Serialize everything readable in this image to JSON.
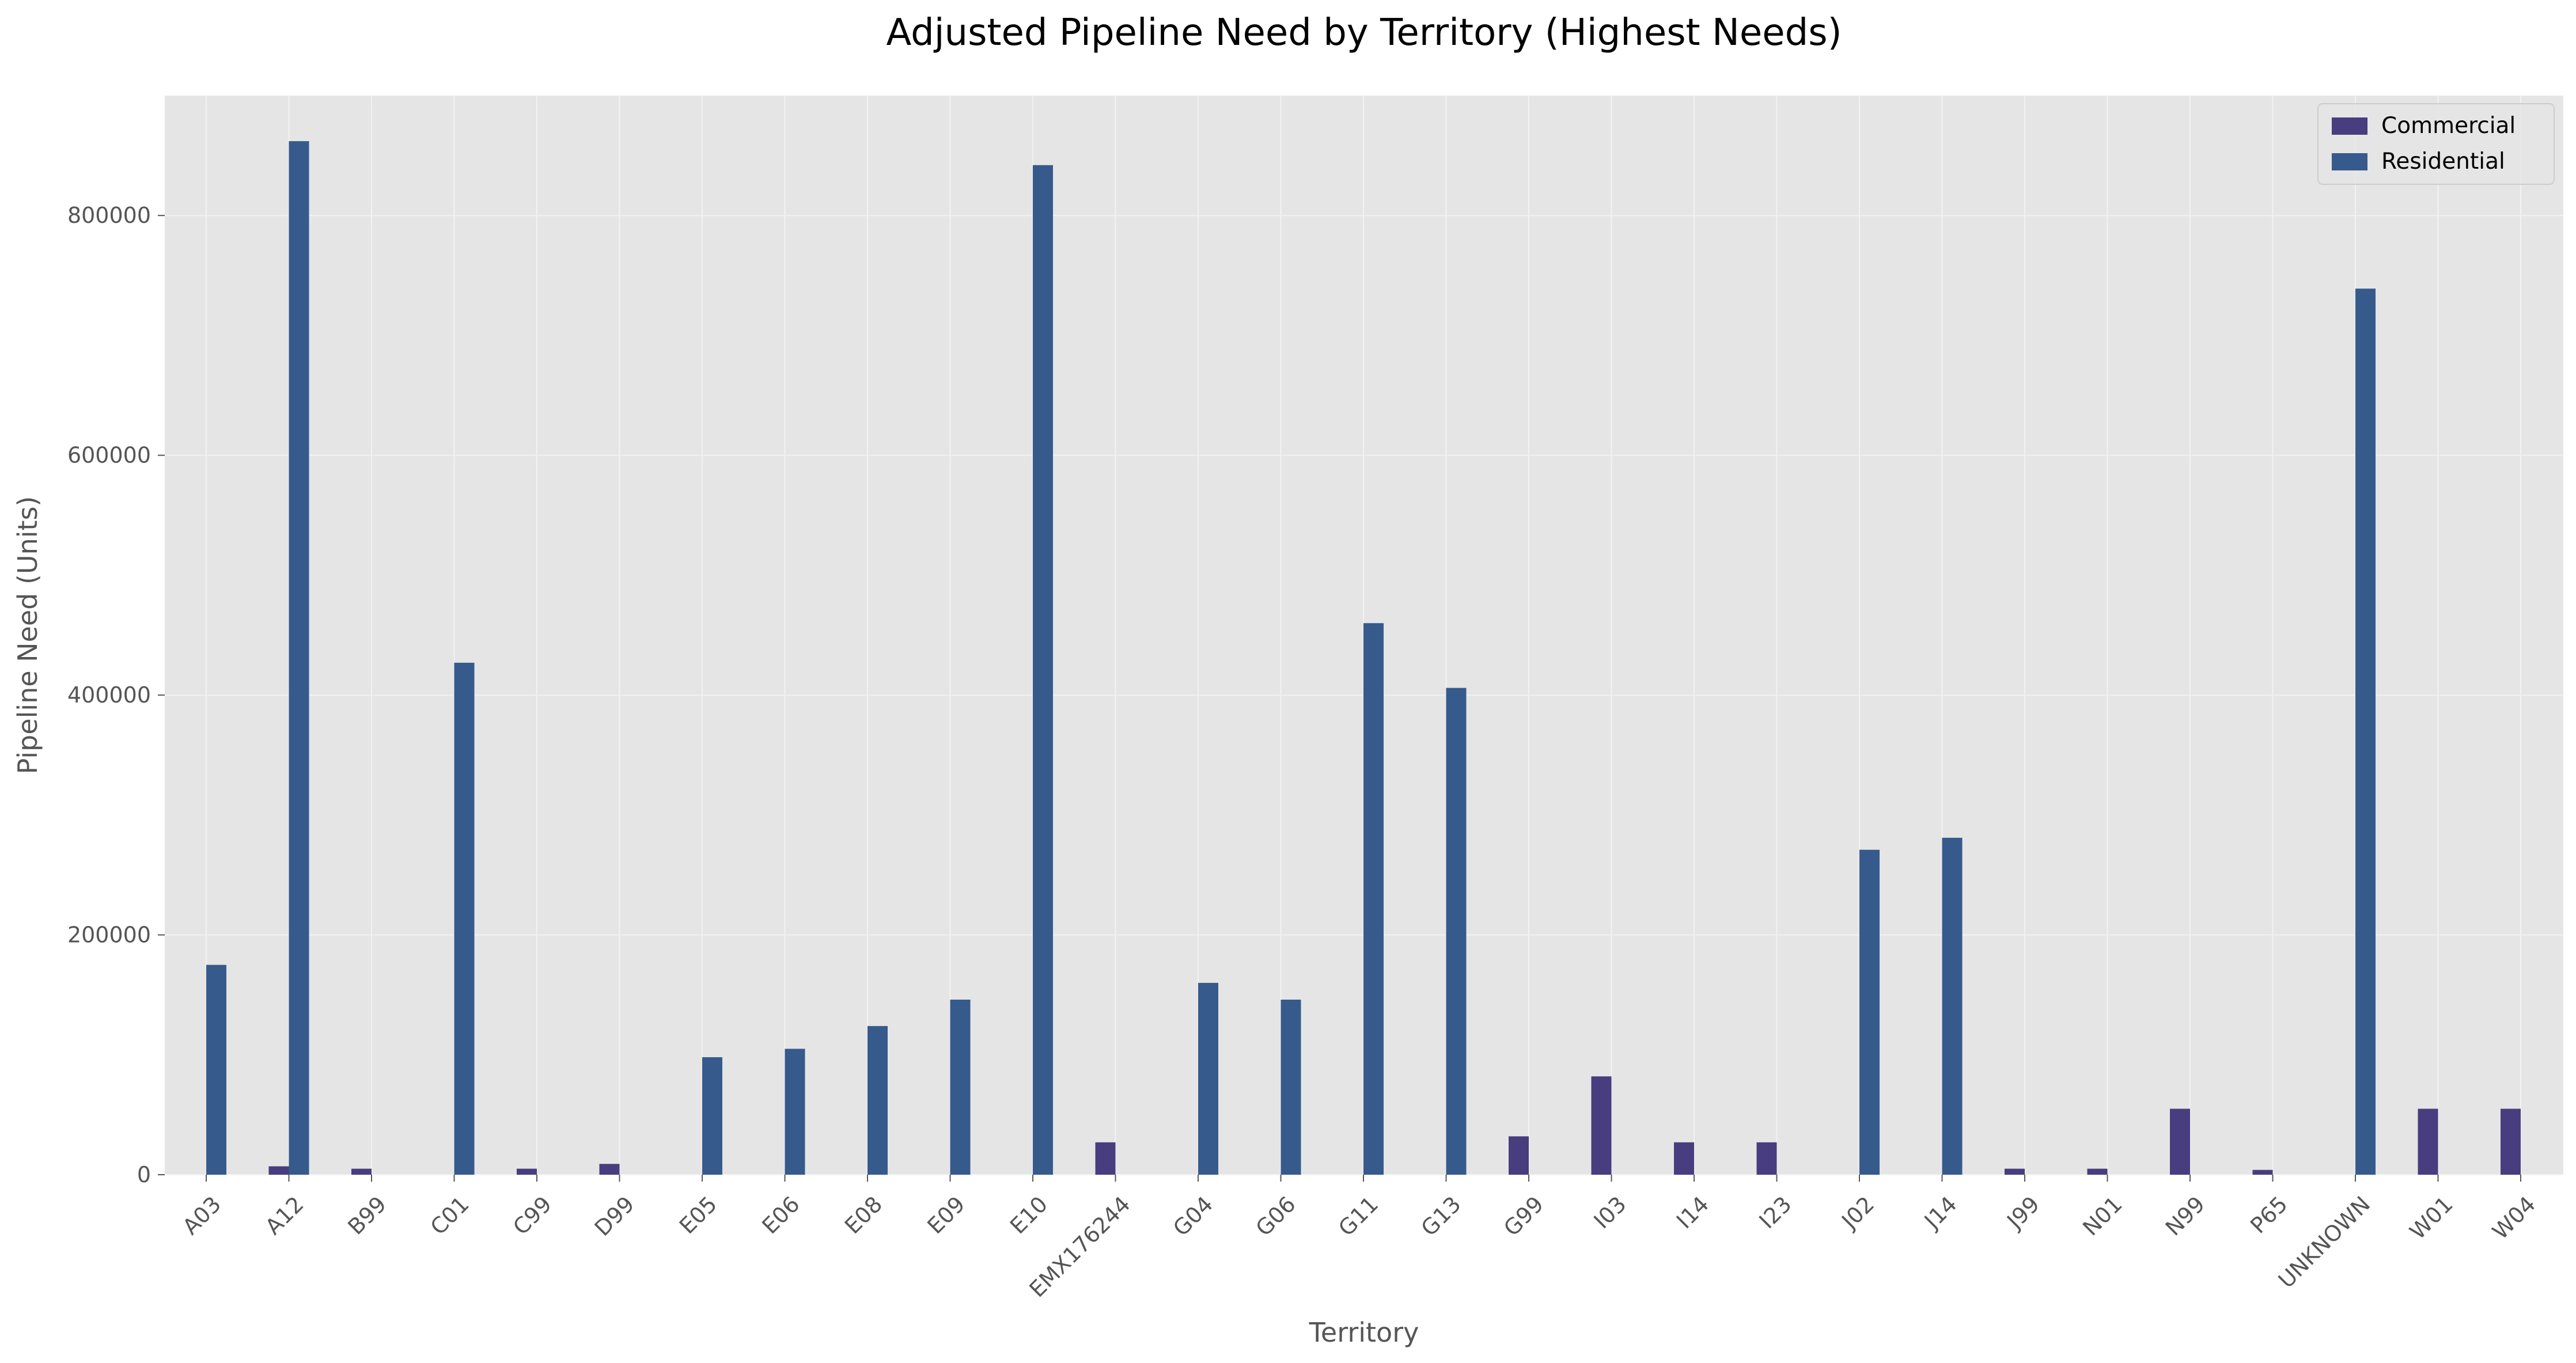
{
  "chart_data": {
    "type": "bar",
    "title": "Adjusted Pipeline Need by Territory (Highest Needs)",
    "xlabel": "Territory",
    "ylabel": "Pipeline Need (Units)",
    "ylim": [
      0,
      900000
    ],
    "yticks": [
      "0",
      "200000",
      "400000",
      "600000",
      "800000"
    ],
    "grid": true,
    "legend_position": "top-right",
    "categories": [
      "A03",
      "A12",
      "B99",
      "C01",
      "C99",
      "D99",
      "E05",
      "E06",
      "E08",
      "E09",
      "E10",
      "EMX176244",
      "G04",
      "G06",
      "G11",
      "G13",
      "G99",
      "I03",
      "I14",
      "I23",
      "J02",
      "J14",
      "J99",
      "N01",
      "N99",
      "P65",
      "UNKNOWN",
      "W01",
      "W04"
    ],
    "series": [
      {
        "name": "Commercial",
        "color": "#483d7e",
        "values": [
          0,
          7000,
          5000,
          0,
          5000,
          9000,
          0,
          0,
          0,
          0,
          0,
          27000,
          0,
          0,
          0,
          0,
          32000,
          82000,
          27000,
          27000,
          0,
          0,
          5000,
          5000,
          55000,
          4000,
          0,
          55000,
          55000
        ]
      },
      {
        "name": "Residential",
        "color": "#375a8c",
        "values": [
          175000,
          862000,
          0,
          427000,
          0,
          0,
          98000,
          105000,
          124000,
          146000,
          842000,
          0,
          160000,
          146000,
          460000,
          406000,
          0,
          0,
          0,
          0,
          271000,
          281000,
          0,
          0,
          0,
          0,
          739000,
          0,
          0
        ]
      }
    ]
  }
}
